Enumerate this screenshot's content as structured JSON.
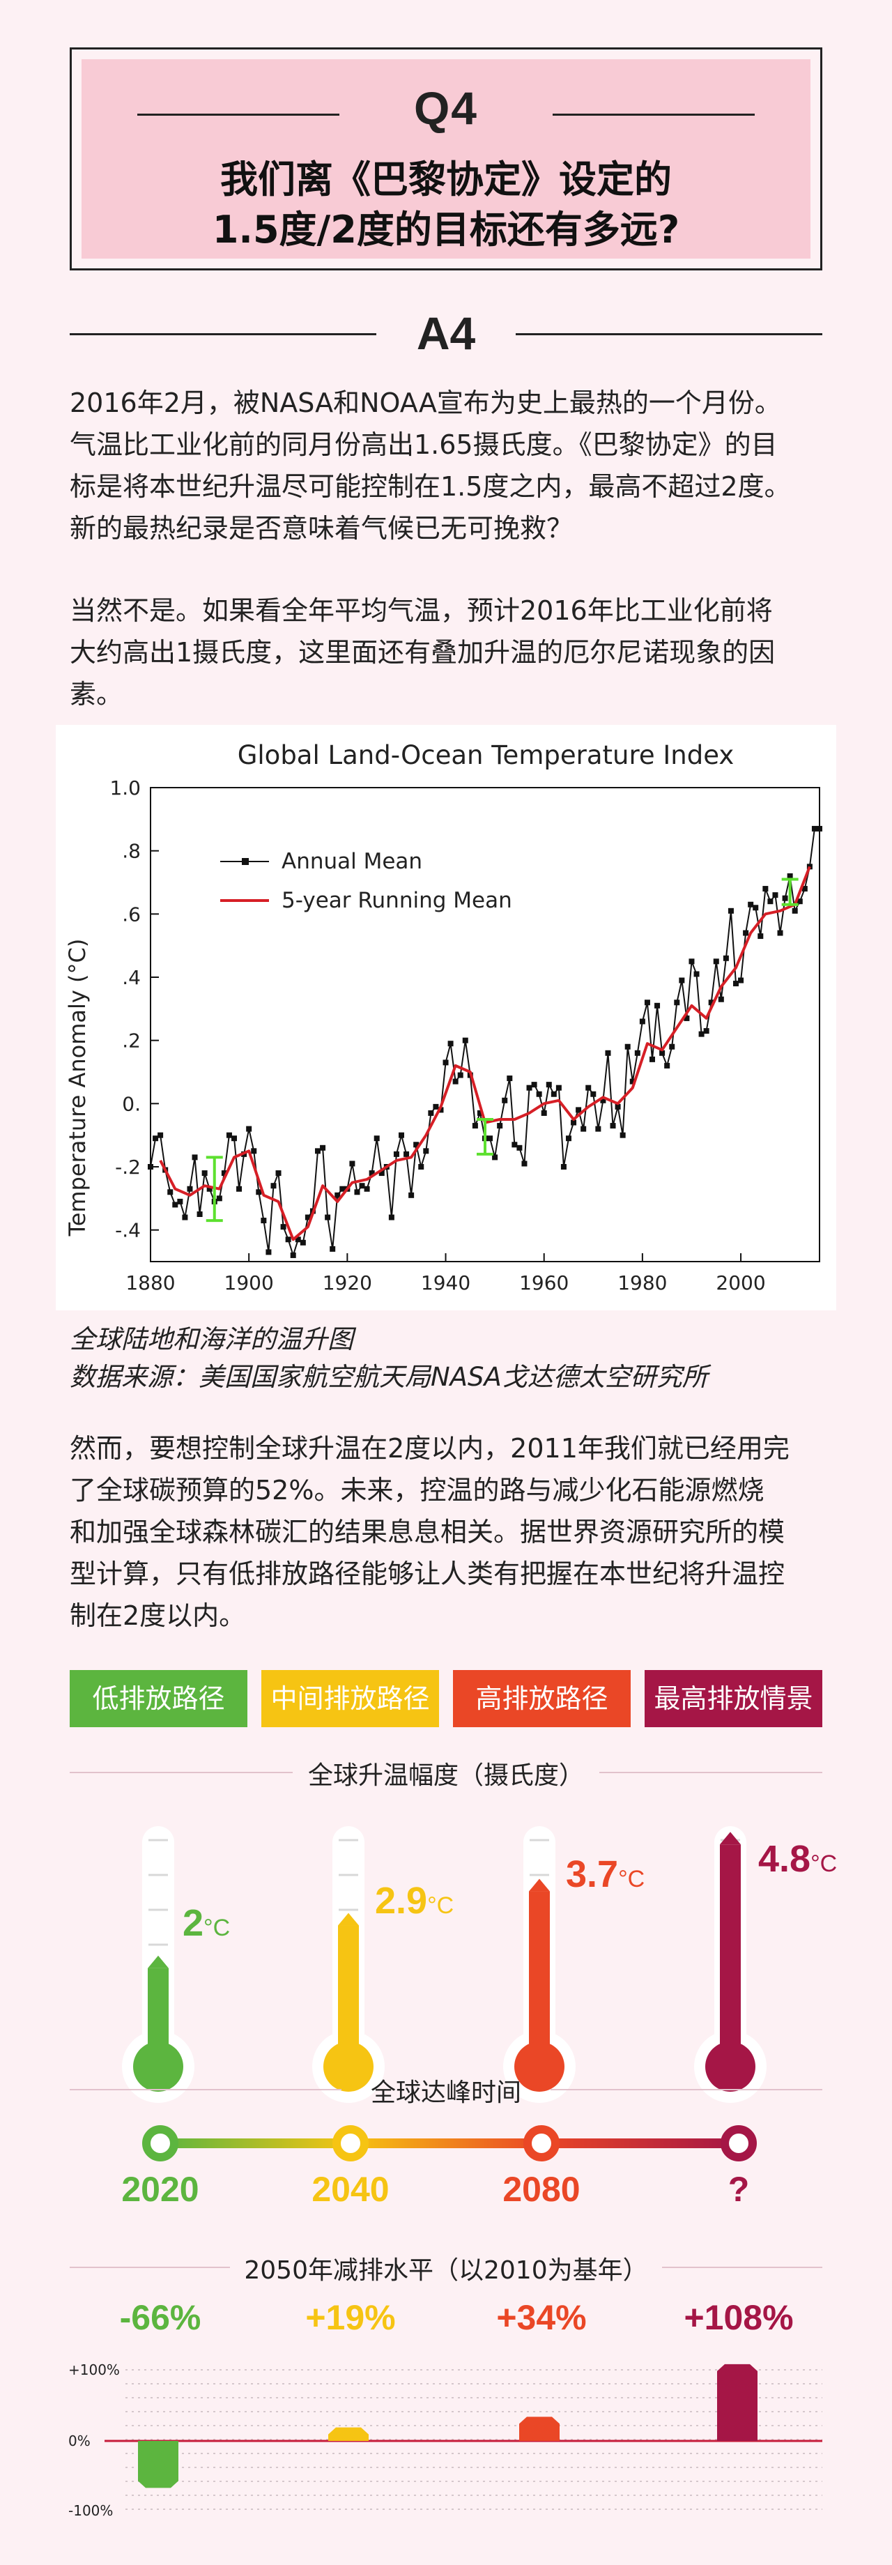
{
  "q": {
    "label": "Q4",
    "title_line1": "我们离《巴黎协定》设定的",
    "title_line2": "1.5度/2度的目标还有多远?"
  },
  "a": {
    "label": "A4"
  },
  "paragraphs": {
    "p1": [
      "2016年2月，被NASA和NOAA宣布为史上最热的一个月份。",
      "气温比工业化前的同月份高出1.65摄氏度。《巴黎协定》的目",
      "标是将本世纪升温尽可能控制在1.5度之内，最高不超过2度。",
      "新的最热纪录是否意味着气候已无可挽救？"
    ],
    "p2": [
      "当然不是。如果看全年平均气温，预计2016年比工业化前将",
      "大约高出1摄氏度，这里面还有叠加升温的厄尔尼诺现象的因",
      "素。"
    ],
    "p3": [
      "然而，要想控制全球升温在2度以内，2011年我们就已经用完",
      "了全球碳预算的52%。未来，控温的路与减少化石能源燃烧",
      "和加强全球森林碳汇的结果息息相关。据世界资源研究所的模",
      "型计算，只有低排放路径能够让人类有把握在本世纪将升温控",
      "制在2度以内。"
    ]
  },
  "caption": {
    "title": "全球陆地和海洋的温升图",
    "source": "数据来源：美国国家航空航天局NASA戈达德太空研究所"
  },
  "chart_data": [
    {
      "type": "line",
      "title": "Global Land-Ocean Temperature Index",
      "xlabel": "",
      "ylabel": "Temperature Anomaly  (°C)",
      "xlim": [
        1880,
        2016
      ],
      "ylim": [
        -0.5,
        1.0
      ],
      "x_ticks": [
        "1880",
        "1900",
        "1920",
        "1940",
        "1960",
        "1980",
        "2000"
      ],
      "y_ticks": [
        "1.0",
        ".8",
        ".6",
        ".4",
        ".2",
        "0.",
        "-.2",
        "-.4"
      ],
      "y_tick_values": [
        1.0,
        0.8,
        0.6,
        0.4,
        0.2,
        0.0,
        -0.2,
        -0.4
      ],
      "legend": "top-left",
      "series": [
        {
          "name": "Annual Mean",
          "color": "#111111",
          "x": [
            1880,
            1881,
            1882,
            1883,
            1884,
            1885,
            1886,
            1887,
            1888,
            1889,
            1890,
            1891,
            1892,
            1893,
            1894,
            1895,
            1896,
            1897,
            1898,
            1899,
            1900,
            1901,
            1902,
            1903,
            1904,
            1905,
            1906,
            1907,
            1908,
            1909,
            1910,
            1911,
            1912,
            1913,
            1914,
            1915,
            1916,
            1917,
            1918,
            1919,
            1920,
            1921,
            1922,
            1923,
            1924,
            1925,
            1926,
            1927,
            1928,
            1929,
            1930,
            1931,
            1932,
            1933,
            1934,
            1935,
            1936,
            1937,
            1938,
            1939,
            1940,
            1941,
            1942,
            1943,
            1944,
            1945,
            1946,
            1947,
            1948,
            1949,
            1950,
            1951,
            1952,
            1953,
            1954,
            1955,
            1956,
            1957,
            1958,
            1959,
            1960,
            1961,
            1962,
            1963,
            1964,
            1965,
            1966,
            1967,
            1968,
            1969,
            1970,
            1971,
            1972,
            1973,
            1974,
            1975,
            1976,
            1977,
            1978,
            1979,
            1980,
            1981,
            1982,
            1983,
            1984,
            1985,
            1986,
            1987,
            1988,
            1989,
            1990,
            1991,
            1992,
            1993,
            1994,
            1995,
            1996,
            1997,
            1998,
            1999,
            2000,
            2001,
            2002,
            2003,
            2004,
            2005,
            2006,
            2007,
            2008,
            2009,
            2010,
            2011,
            2012,
            2013,
            2014,
            2015,
            2016
          ],
          "values": [
            -0.2,
            -0.11,
            -0.1,
            -0.21,
            -0.28,
            -0.32,
            -0.31,
            -0.36,
            -0.27,
            -0.17,
            -0.35,
            -0.22,
            -0.27,
            -0.31,
            -0.3,
            -0.22,
            -0.1,
            -0.11,
            -0.27,
            -0.16,
            -0.08,
            -0.15,
            -0.28,
            -0.37,
            -0.47,
            -0.26,
            -0.22,
            -0.39,
            -0.43,
            -0.48,
            -0.43,
            -0.44,
            -0.36,
            -0.34,
            -0.15,
            -0.14,
            -0.36,
            -0.46,
            -0.29,
            -0.27,
            -0.27,
            -0.19,
            -0.28,
            -0.26,
            -0.27,
            -0.22,
            -0.11,
            -0.22,
            -0.2,
            -0.36,
            -0.16,
            -0.1,
            -0.16,
            -0.29,
            -0.13,
            -0.2,
            -0.15,
            -0.03,
            -0.01,
            -0.02,
            0.13,
            0.19,
            0.07,
            0.09,
            0.2,
            0.09,
            -0.07,
            -0.03,
            -0.11,
            -0.11,
            -0.17,
            -0.07,
            0.01,
            0.08,
            -0.13,
            -0.14,
            -0.19,
            0.05,
            0.06,
            0.03,
            -0.03,
            0.06,
            0.03,
            0.05,
            -0.2,
            -0.11,
            -0.06,
            -0.02,
            -0.08,
            0.05,
            0.03,
            -0.08,
            0.01,
            0.16,
            -0.07,
            -0.01,
            -0.1,
            0.18,
            0.07,
            0.16,
            0.26,
            0.32,
            0.14,
            0.31,
            0.16,
            0.12,
            0.18,
            0.32,
            0.39,
            0.27,
            0.45,
            0.41,
            0.22,
            0.23,
            0.32,
            0.45,
            0.33,
            0.46,
            0.61,
            0.38,
            0.39,
            0.54,
            0.63,
            0.62,
            0.53,
            0.68,
            0.64,
            0.66,
            0.54,
            0.65,
            0.72,
            0.61,
            0.64,
            0.68,
            0.75,
            0.87,
            0.87
          ]
        },
        {
          "name": "5-year Running Mean",
          "color": "#d61f26",
          "x": [
            1882,
            1885,
            1888,
            1891,
            1894,
            1897,
            1900,
            1903,
            1906,
            1909,
            1912,
            1915,
            1918,
            1921,
            1924,
            1927,
            1930,
            1933,
            1936,
            1939,
            1942,
            1945,
            1948,
            1951,
            1954,
            1957,
            1960,
            1963,
            1966,
            1969,
            1972,
            1975,
            1978,
            1981,
            1984,
            1987,
            1990,
            1993,
            1996,
            1999,
            2002,
            2005,
            2008,
            2011,
            2014
          ],
          "values": [
            -0.18,
            -0.27,
            -0.29,
            -0.26,
            -0.27,
            -0.17,
            -0.15,
            -0.29,
            -0.31,
            -0.43,
            -0.39,
            -0.26,
            -0.31,
            -0.25,
            -0.24,
            -0.21,
            -0.18,
            -0.17,
            -0.1,
            -0.01,
            0.12,
            0.1,
            -0.06,
            -0.05,
            -0.05,
            -0.03,
            0.0,
            0.01,
            -0.05,
            -0.01,
            0.02,
            0.0,
            0.05,
            0.19,
            0.17,
            0.24,
            0.31,
            0.27,
            0.37,
            0.43,
            0.54,
            0.6,
            0.61,
            0.63,
            0.75
          ]
        }
      ]
    },
    {
      "type": "bar",
      "title": "2050年减排水平（以2010为基年）",
      "categories": [
        "低排放路径",
        "中间排放路径",
        "高排放路径",
        "最高排放情景"
      ],
      "values": [
        -66,
        19,
        34,
        108
      ],
      "value_labels": [
        "-66%",
        "+19%",
        "+34%",
        "+108%"
      ],
      "y_ticks": [
        "+100%",
        "0%",
        "-100%"
      ],
      "ylim": [
        -100,
        100
      ]
    }
  ],
  "legend": {
    "items": [
      {
        "label": "低排放路径",
        "color": "#5cb53f"
      },
      {
        "label": "中间排放路径",
        "color": "#f6c413"
      },
      {
        "label": "高排放路径",
        "color": "#ea4726"
      },
      {
        "label": "最高排放情景",
        "color": "#a51646"
      }
    ]
  },
  "warming": {
    "title": "全球升温幅度（摄氏度）",
    "items": [
      {
        "value": "2",
        "unit": "°C",
        "level": 0.38,
        "color": "#5cb53f"
      },
      {
        "value": "2.9",
        "unit": "°C",
        "level": 0.58,
        "color": "#f6c413"
      },
      {
        "value": "3.7",
        "unit": "°C",
        "level": 0.74,
        "color": "#ea4726"
      },
      {
        "value": "4.8",
        "unit": "°C",
        "level": 0.96,
        "color": "#a51646"
      }
    ]
  },
  "peak": {
    "title": "全球达峰时间",
    "items": [
      {
        "label": "2020",
        "color": "#5cb53f"
      },
      {
        "label": "2040",
        "color": "#f6c413"
      },
      {
        "label": "2080",
        "color": "#ea4726"
      },
      {
        "label": "?",
        "color": "#a51646"
      }
    ]
  }
}
